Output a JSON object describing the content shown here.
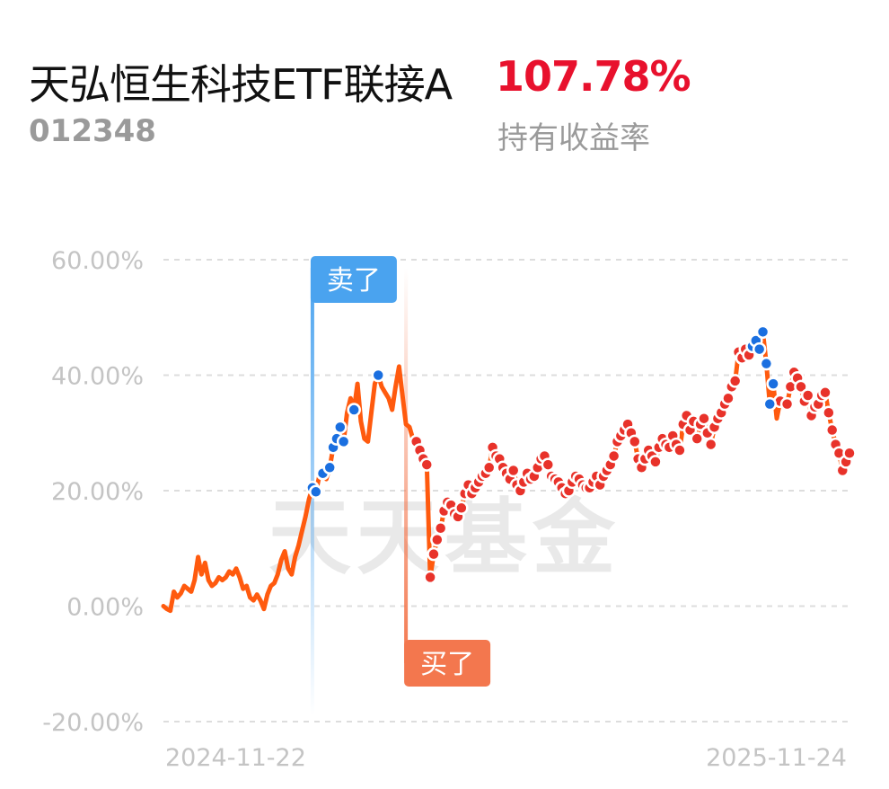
{
  "header": {
    "fund_name": "天弘恒生科技ETF联接A",
    "fund_code": "012348",
    "return_value": "107.78%",
    "return_label": "持有收益率"
  },
  "watermark": "天天基金",
  "colors": {
    "line": "#ff5a0e",
    "buy_dot": "#e8322a",
    "sell_dot": "#1a6fe0",
    "sell_marker": "#4aa3ef",
    "buy_marker": "#f3774e",
    "title_red": "#e8112d"
  },
  "markers": {
    "sell_label": "卖了",
    "buy_label": "买了"
  },
  "chart_data": {
    "type": "line",
    "x_start_label": "2024-11-22",
    "x_end_label": "2025-11-24",
    "yticks": [
      60,
      40,
      20,
      0,
      -20
    ],
    "ytick_labels": [
      "60.00%",
      "40.00%",
      "20.00%",
      "0.00%",
      "-20.00%"
    ],
    "ylim": [
      -20,
      60
    ],
    "grid": true,
    "series": [
      {
        "values": [
          0.0,
          -0.5,
          -0.8,
          2.5,
          1.5,
          2.2,
          3.5,
          3.0,
          2.5,
          4.5,
          8.5,
          5.5,
          7.5,
          4.5,
          3.5,
          4.0,
          5.0,
          4.5,
          5.0,
          6.0,
          5.5,
          6.5,
          5.0,
          3.0,
          3.5,
          1.5,
          1.0,
          2.0,
          1.0,
          -0.5,
          2.0,
          3.5,
          4.0,
          5.5,
          8.0,
          9.5,
          6.5,
          5.5,
          8.5,
          10.5,
          13.0,
          15.5,
          18.5,
          20.5,
          19.8,
          22.5,
          23.0,
          22.0,
          24.0,
          27.5,
          29.0,
          31.0,
          28.5,
          33.5,
          36.0,
          34.0,
          38.5,
          32.0,
          29.0,
          28.5,
          33.5,
          38.5,
          40.0,
          38.0,
          37.0,
          36.0,
          34.0,
          38.0,
          41.5,
          36.5,
          31.5,
          31.0,
          29.0,
          28.5,
          27.0,
          25.5,
          24.5,
          5.0,
          9.0,
          11.5,
          13.5,
          16.5,
          18.0,
          17.5,
          16.0,
          15.5,
          17.0,
          19.5,
          21.0,
          19.5,
          20.5,
          21.5,
          22.5,
          23.0,
          24.0,
          27.5,
          26.0,
          25.5,
          24.0,
          23.0,
          22.0,
          23.5,
          21.0,
          20.0,
          21.5,
          23.0,
          22.0,
          22.5,
          24.0,
          25.5,
          26.0,
          24.5,
          22.5,
          22.0,
          21.5,
          20.5,
          19.5,
          20.0,
          21.5,
          22.5,
          22.0,
          21.0,
          20.5,
          20.5,
          21.5,
          22.5,
          21.0,
          22.5,
          23.5,
          24.5,
          26.0,
          28.5,
          29.5,
          30.5,
          31.5,
          30.0,
          28.5,
          25.5,
          24.0,
          25.5,
          27.0,
          26.0,
          25.0,
          27.5,
          29.0,
          28.0,
          27.5,
          29.5,
          28.0,
          27.0,
          31.5,
          33.0,
          30.5,
          32.0,
          29.0,
          31.5,
          32.5,
          30.0,
          28.0,
          31.0,
          32.5,
          33.5,
          35.0,
          36.0,
          38.0,
          39.0,
          44.0,
          43.0,
          44.5,
          43.5,
          45.0,
          46.0,
          44.5,
          47.5,
          42.0,
          35.0,
          38.5,
          32.5,
          35.5,
          36.0,
          35.0,
          38.0,
          40.5,
          39.5,
          38.0,
          35.5,
          36.5,
          33.0,
          34.5,
          35.0,
          36.5,
          37.0,
          33.5,
          30.5,
          28.0,
          26.5,
          23.5,
          25.0,
          26.5
        ]
      }
    ],
    "sell_dot_indices": [
      43,
      44,
      46,
      48,
      49,
      50,
      51,
      52,
      55,
      62
    ],
    "buy_dot_indices": [
      73,
      74,
      75,
      76,
      77,
      78,
      79,
      80,
      81,
      82,
      83,
      84,
      85,
      86,
      87,
      88,
      89,
      90,
      91,
      92,
      93,
      94,
      95,
      96,
      97,
      98,
      99,
      100,
      101,
      102,
      103,
      104,
      105,
      106,
      107,
      108,
      109,
      110,
      111,
      112,
      113,
      114,
      115,
      116,
      117,
      118,
      119,
      120,
      121,
      122,
      123,
      124,
      125,
      126,
      127,
      128,
      129,
      130,
      131,
      132,
      133,
      134,
      135,
      136,
      137,
      138,
      139,
      140,
      141,
      142,
      143,
      144,
      145,
      146,
      147,
      148,
      149,
      150,
      151,
      152,
      153,
      154,
      155,
      156,
      157,
      158,
      159,
      160,
      161,
      162,
      163,
      164,
      165,
      166,
      167,
      168,
      169,
      170,
      171,
      172,
      173,
      174,
      178,
      180,
      181,
      182,
      183,
      184,
      185,
      186,
      187,
      188,
      189,
      190,
      191,
      192,
      193,
      194,
      195,
      196,
      197,
      198,
      199,
      200,
      201,
      202
    ],
    "sell_dot_indices_late": [
      170,
      171,
      172,
      173,
      174,
      175,
      176
    ],
    "sell_marker_index": 43,
    "buy_marker_index": 70
  }
}
